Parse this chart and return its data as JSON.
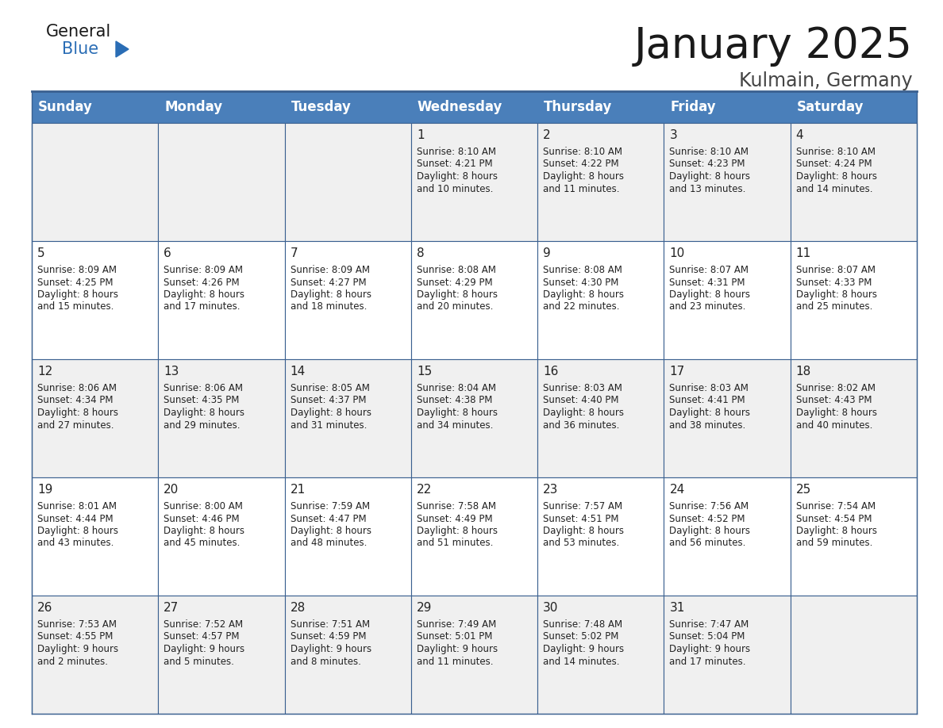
{
  "title": "January 2025",
  "subtitle": "Kulmain, Germany",
  "days_of_week": [
    "Sunday",
    "Monday",
    "Tuesday",
    "Wednesday",
    "Thursday",
    "Friday",
    "Saturday"
  ],
  "header_bg": "#4a7fba",
  "header_text": "#ffffff",
  "cell_bg_odd": "#f0f0f0",
  "cell_bg_even": "#ffffff",
  "border_color": "#3a6090",
  "title_color": "#1a1a1a",
  "subtitle_color": "#444444",
  "day_number_color": "#222222",
  "cell_text_color": "#222222",
  "logo_general_color": "#1a1a1a",
  "logo_blue_color": "#2a6db5",
  "calendar_data": [
    {
      "day": 1,
      "col": 3,
      "row": 0,
      "sunrise": "8:10 AM",
      "sunset": "4:21 PM",
      "daylight_hours": 8,
      "daylight_minutes": 10
    },
    {
      "day": 2,
      "col": 4,
      "row": 0,
      "sunrise": "8:10 AM",
      "sunset": "4:22 PM",
      "daylight_hours": 8,
      "daylight_minutes": 11
    },
    {
      "day": 3,
      "col": 5,
      "row": 0,
      "sunrise": "8:10 AM",
      "sunset": "4:23 PM",
      "daylight_hours": 8,
      "daylight_minutes": 13
    },
    {
      "day": 4,
      "col": 6,
      "row": 0,
      "sunrise": "8:10 AM",
      "sunset": "4:24 PM",
      "daylight_hours": 8,
      "daylight_minutes": 14
    },
    {
      "day": 5,
      "col": 0,
      "row": 1,
      "sunrise": "8:09 AM",
      "sunset": "4:25 PM",
      "daylight_hours": 8,
      "daylight_minutes": 15
    },
    {
      "day": 6,
      "col": 1,
      "row": 1,
      "sunrise": "8:09 AM",
      "sunset": "4:26 PM",
      "daylight_hours": 8,
      "daylight_minutes": 17
    },
    {
      "day": 7,
      "col": 2,
      "row": 1,
      "sunrise": "8:09 AM",
      "sunset": "4:27 PM",
      "daylight_hours": 8,
      "daylight_minutes": 18
    },
    {
      "day": 8,
      "col": 3,
      "row": 1,
      "sunrise": "8:08 AM",
      "sunset": "4:29 PM",
      "daylight_hours": 8,
      "daylight_minutes": 20
    },
    {
      "day": 9,
      "col": 4,
      "row": 1,
      "sunrise": "8:08 AM",
      "sunset": "4:30 PM",
      "daylight_hours": 8,
      "daylight_minutes": 22
    },
    {
      "day": 10,
      "col": 5,
      "row": 1,
      "sunrise": "8:07 AM",
      "sunset": "4:31 PM",
      "daylight_hours": 8,
      "daylight_minutes": 23
    },
    {
      "day": 11,
      "col": 6,
      "row": 1,
      "sunrise": "8:07 AM",
      "sunset": "4:33 PM",
      "daylight_hours": 8,
      "daylight_minutes": 25
    },
    {
      "day": 12,
      "col": 0,
      "row": 2,
      "sunrise": "8:06 AM",
      "sunset": "4:34 PM",
      "daylight_hours": 8,
      "daylight_minutes": 27
    },
    {
      "day": 13,
      "col": 1,
      "row": 2,
      "sunrise": "8:06 AM",
      "sunset": "4:35 PM",
      "daylight_hours": 8,
      "daylight_minutes": 29
    },
    {
      "day": 14,
      "col": 2,
      "row": 2,
      "sunrise": "8:05 AM",
      "sunset": "4:37 PM",
      "daylight_hours": 8,
      "daylight_minutes": 31
    },
    {
      "day": 15,
      "col": 3,
      "row": 2,
      "sunrise": "8:04 AM",
      "sunset": "4:38 PM",
      "daylight_hours": 8,
      "daylight_minutes": 34
    },
    {
      "day": 16,
      "col": 4,
      "row": 2,
      "sunrise": "8:03 AM",
      "sunset": "4:40 PM",
      "daylight_hours": 8,
      "daylight_minutes": 36
    },
    {
      "day": 17,
      "col": 5,
      "row": 2,
      "sunrise": "8:03 AM",
      "sunset": "4:41 PM",
      "daylight_hours": 8,
      "daylight_minutes": 38
    },
    {
      "day": 18,
      "col": 6,
      "row": 2,
      "sunrise": "8:02 AM",
      "sunset": "4:43 PM",
      "daylight_hours": 8,
      "daylight_minutes": 40
    },
    {
      "day": 19,
      "col": 0,
      "row": 3,
      "sunrise": "8:01 AM",
      "sunset": "4:44 PM",
      "daylight_hours": 8,
      "daylight_minutes": 43
    },
    {
      "day": 20,
      "col": 1,
      "row": 3,
      "sunrise": "8:00 AM",
      "sunset": "4:46 PM",
      "daylight_hours": 8,
      "daylight_minutes": 45
    },
    {
      "day": 21,
      "col": 2,
      "row": 3,
      "sunrise": "7:59 AM",
      "sunset": "4:47 PM",
      "daylight_hours": 8,
      "daylight_minutes": 48
    },
    {
      "day": 22,
      "col": 3,
      "row": 3,
      "sunrise": "7:58 AM",
      "sunset": "4:49 PM",
      "daylight_hours": 8,
      "daylight_minutes": 51
    },
    {
      "day": 23,
      "col": 4,
      "row": 3,
      "sunrise": "7:57 AM",
      "sunset": "4:51 PM",
      "daylight_hours": 8,
      "daylight_minutes": 53
    },
    {
      "day": 24,
      "col": 5,
      "row": 3,
      "sunrise": "7:56 AM",
      "sunset": "4:52 PM",
      "daylight_hours": 8,
      "daylight_minutes": 56
    },
    {
      "day": 25,
      "col": 6,
      "row": 3,
      "sunrise": "7:54 AM",
      "sunset": "4:54 PM",
      "daylight_hours": 8,
      "daylight_minutes": 59
    },
    {
      "day": 26,
      "col": 0,
      "row": 4,
      "sunrise": "7:53 AM",
      "sunset": "4:55 PM",
      "daylight_hours": 9,
      "daylight_minutes": 2
    },
    {
      "day": 27,
      "col": 1,
      "row": 4,
      "sunrise": "7:52 AM",
      "sunset": "4:57 PM",
      "daylight_hours": 9,
      "daylight_minutes": 5
    },
    {
      "day": 28,
      "col": 2,
      "row": 4,
      "sunrise": "7:51 AM",
      "sunset": "4:59 PM",
      "daylight_hours": 9,
      "daylight_minutes": 8
    },
    {
      "day": 29,
      "col": 3,
      "row": 4,
      "sunrise": "7:49 AM",
      "sunset": "5:01 PM",
      "daylight_hours": 9,
      "daylight_minutes": 11
    },
    {
      "day": 30,
      "col": 4,
      "row": 4,
      "sunrise": "7:48 AM",
      "sunset": "5:02 PM",
      "daylight_hours": 9,
      "daylight_minutes": 14
    },
    {
      "day": 31,
      "col": 5,
      "row": 4,
      "sunrise": "7:47 AM",
      "sunset": "5:04 PM",
      "daylight_hours": 9,
      "daylight_minutes": 17
    }
  ]
}
